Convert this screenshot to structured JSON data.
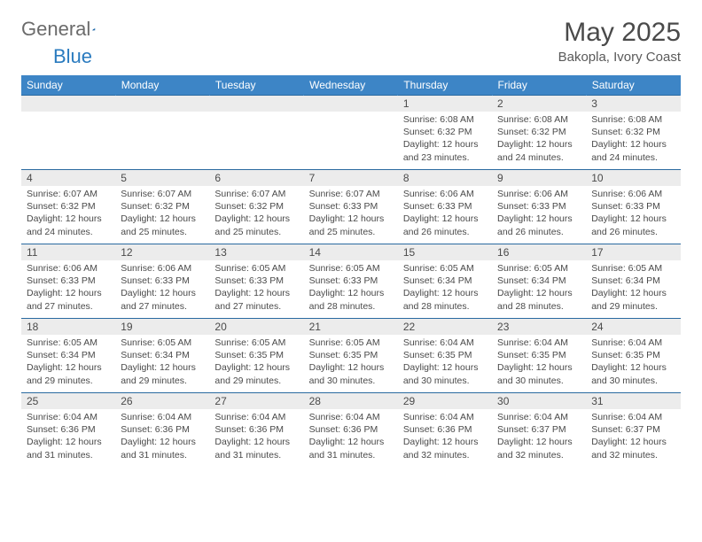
{
  "brand": {
    "general": "General",
    "blue": "Blue"
  },
  "title": {
    "month_year": "May 2025",
    "location": "Bakopla, Ivory Coast"
  },
  "colors": {
    "header_bg": "#3d85c6",
    "header_text": "#ffffff",
    "rule": "#2a6aa0",
    "daynum_bg": "#ececec",
    "text": "#4a4a4a",
    "logo_gray": "#6b6b6b",
    "logo_blue": "#2a7bbf"
  },
  "weekdays": [
    "Sunday",
    "Monday",
    "Tuesday",
    "Wednesday",
    "Thursday",
    "Friday",
    "Saturday"
  ],
  "cells": [
    {
      "day": "",
      "sunrise": "",
      "sunset": "",
      "daylight": ""
    },
    {
      "day": "",
      "sunrise": "",
      "sunset": "",
      "daylight": ""
    },
    {
      "day": "",
      "sunrise": "",
      "sunset": "",
      "daylight": ""
    },
    {
      "day": "",
      "sunrise": "",
      "sunset": "",
      "daylight": ""
    },
    {
      "day": "1",
      "sunrise": "Sunrise: 6:08 AM",
      "sunset": "Sunset: 6:32 PM",
      "daylight": "Daylight: 12 hours and 23 minutes."
    },
    {
      "day": "2",
      "sunrise": "Sunrise: 6:08 AM",
      "sunset": "Sunset: 6:32 PM",
      "daylight": "Daylight: 12 hours and 24 minutes."
    },
    {
      "day": "3",
      "sunrise": "Sunrise: 6:08 AM",
      "sunset": "Sunset: 6:32 PM",
      "daylight": "Daylight: 12 hours and 24 minutes."
    },
    {
      "day": "4",
      "sunrise": "Sunrise: 6:07 AM",
      "sunset": "Sunset: 6:32 PM",
      "daylight": "Daylight: 12 hours and 24 minutes."
    },
    {
      "day": "5",
      "sunrise": "Sunrise: 6:07 AM",
      "sunset": "Sunset: 6:32 PM",
      "daylight": "Daylight: 12 hours and 25 minutes."
    },
    {
      "day": "6",
      "sunrise": "Sunrise: 6:07 AM",
      "sunset": "Sunset: 6:32 PM",
      "daylight": "Daylight: 12 hours and 25 minutes."
    },
    {
      "day": "7",
      "sunrise": "Sunrise: 6:07 AM",
      "sunset": "Sunset: 6:33 PM",
      "daylight": "Daylight: 12 hours and 25 minutes."
    },
    {
      "day": "8",
      "sunrise": "Sunrise: 6:06 AM",
      "sunset": "Sunset: 6:33 PM",
      "daylight": "Daylight: 12 hours and 26 minutes."
    },
    {
      "day": "9",
      "sunrise": "Sunrise: 6:06 AM",
      "sunset": "Sunset: 6:33 PM",
      "daylight": "Daylight: 12 hours and 26 minutes."
    },
    {
      "day": "10",
      "sunrise": "Sunrise: 6:06 AM",
      "sunset": "Sunset: 6:33 PM",
      "daylight": "Daylight: 12 hours and 26 minutes."
    },
    {
      "day": "11",
      "sunrise": "Sunrise: 6:06 AM",
      "sunset": "Sunset: 6:33 PM",
      "daylight": "Daylight: 12 hours and 27 minutes."
    },
    {
      "day": "12",
      "sunrise": "Sunrise: 6:06 AM",
      "sunset": "Sunset: 6:33 PM",
      "daylight": "Daylight: 12 hours and 27 minutes."
    },
    {
      "day": "13",
      "sunrise": "Sunrise: 6:05 AM",
      "sunset": "Sunset: 6:33 PM",
      "daylight": "Daylight: 12 hours and 27 minutes."
    },
    {
      "day": "14",
      "sunrise": "Sunrise: 6:05 AM",
      "sunset": "Sunset: 6:33 PM",
      "daylight": "Daylight: 12 hours and 28 minutes."
    },
    {
      "day": "15",
      "sunrise": "Sunrise: 6:05 AM",
      "sunset": "Sunset: 6:34 PM",
      "daylight": "Daylight: 12 hours and 28 minutes."
    },
    {
      "day": "16",
      "sunrise": "Sunrise: 6:05 AM",
      "sunset": "Sunset: 6:34 PM",
      "daylight": "Daylight: 12 hours and 28 minutes."
    },
    {
      "day": "17",
      "sunrise": "Sunrise: 6:05 AM",
      "sunset": "Sunset: 6:34 PM",
      "daylight": "Daylight: 12 hours and 29 minutes."
    },
    {
      "day": "18",
      "sunrise": "Sunrise: 6:05 AM",
      "sunset": "Sunset: 6:34 PM",
      "daylight": "Daylight: 12 hours and 29 minutes."
    },
    {
      "day": "19",
      "sunrise": "Sunrise: 6:05 AM",
      "sunset": "Sunset: 6:34 PM",
      "daylight": "Daylight: 12 hours and 29 minutes."
    },
    {
      "day": "20",
      "sunrise": "Sunrise: 6:05 AM",
      "sunset": "Sunset: 6:35 PM",
      "daylight": "Daylight: 12 hours and 29 minutes."
    },
    {
      "day": "21",
      "sunrise": "Sunrise: 6:05 AM",
      "sunset": "Sunset: 6:35 PM",
      "daylight": "Daylight: 12 hours and 30 minutes."
    },
    {
      "day": "22",
      "sunrise": "Sunrise: 6:04 AM",
      "sunset": "Sunset: 6:35 PM",
      "daylight": "Daylight: 12 hours and 30 minutes."
    },
    {
      "day": "23",
      "sunrise": "Sunrise: 6:04 AM",
      "sunset": "Sunset: 6:35 PM",
      "daylight": "Daylight: 12 hours and 30 minutes."
    },
    {
      "day": "24",
      "sunrise": "Sunrise: 6:04 AM",
      "sunset": "Sunset: 6:35 PM",
      "daylight": "Daylight: 12 hours and 30 minutes."
    },
    {
      "day": "25",
      "sunrise": "Sunrise: 6:04 AM",
      "sunset": "Sunset: 6:36 PM",
      "daylight": "Daylight: 12 hours and 31 minutes."
    },
    {
      "day": "26",
      "sunrise": "Sunrise: 6:04 AM",
      "sunset": "Sunset: 6:36 PM",
      "daylight": "Daylight: 12 hours and 31 minutes."
    },
    {
      "day": "27",
      "sunrise": "Sunrise: 6:04 AM",
      "sunset": "Sunset: 6:36 PM",
      "daylight": "Daylight: 12 hours and 31 minutes."
    },
    {
      "day": "28",
      "sunrise": "Sunrise: 6:04 AM",
      "sunset": "Sunset: 6:36 PM",
      "daylight": "Daylight: 12 hours and 31 minutes."
    },
    {
      "day": "29",
      "sunrise": "Sunrise: 6:04 AM",
      "sunset": "Sunset: 6:36 PM",
      "daylight": "Daylight: 12 hours and 32 minutes."
    },
    {
      "day": "30",
      "sunrise": "Sunrise: 6:04 AM",
      "sunset": "Sunset: 6:37 PM",
      "daylight": "Daylight: 12 hours and 32 minutes."
    },
    {
      "day": "31",
      "sunrise": "Sunrise: 6:04 AM",
      "sunset": "Sunset: 6:37 PM",
      "daylight": "Daylight: 12 hours and 32 minutes."
    }
  ]
}
